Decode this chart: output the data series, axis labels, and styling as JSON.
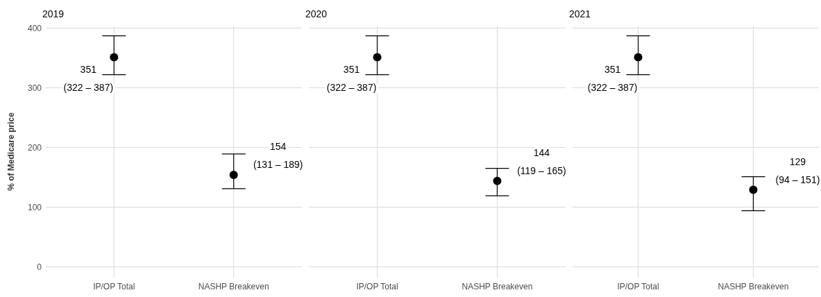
{
  "chart_data": [
    {
      "type": "scatter",
      "title": "2019",
      "ylabel": "% of Medicare price",
      "categories": [
        "IP/OP Total",
        "NASHP Breakeven"
      ],
      "values": [
        351,
        154
      ],
      "errors": [
        [
          322,
          387
        ],
        [
          131,
          189
        ]
      ],
      "value_labels": [
        "351\n(322 – 387)",
        "154\n(131 – 189)"
      ],
      "color": "#000000",
      "marker": "circle",
      "ylim": [
        -18,
        404
      ],
      "yticks": [
        0,
        100,
        200,
        300,
        400
      ],
      "grid": true
    },
    {
      "type": "scatter",
      "title": "2020",
      "categories": [
        "IP/OP Total",
        "NASHP Breakeven"
      ],
      "values": [
        351,
        144
      ],
      "errors": [
        [
          322,
          387
        ],
        [
          119,
          165
        ]
      ],
      "value_labels": [
        "351\n(322 – 387)",
        "144\n(119 – 165)"
      ],
      "color": "#000000",
      "marker": "circle",
      "ylim": [
        -18,
        404
      ],
      "yticks": [
        0,
        100,
        200,
        300,
        400
      ],
      "grid": true,
      "tick_labels": "x"
    },
    {
      "type": "scatter",
      "title": "2021",
      "categories": [
        "IP/OP Total",
        "NASHP Breakeven"
      ],
      "values": [
        351,
        129
      ],
      "errors": [
        [
          322,
          387
        ],
        [
          94,
          151
        ]
      ],
      "value_labels": [
        "351\n(322 – 387)",
        "129\n(94 – 151)"
      ],
      "color": "#000000",
      "marker": "circle",
      "ylim": [
        -18,
        404
      ],
      "yticks": [
        0,
        100,
        200,
        300,
        400
      ],
      "grid": true,
      "tick_labels": "x"
    }
  ]
}
